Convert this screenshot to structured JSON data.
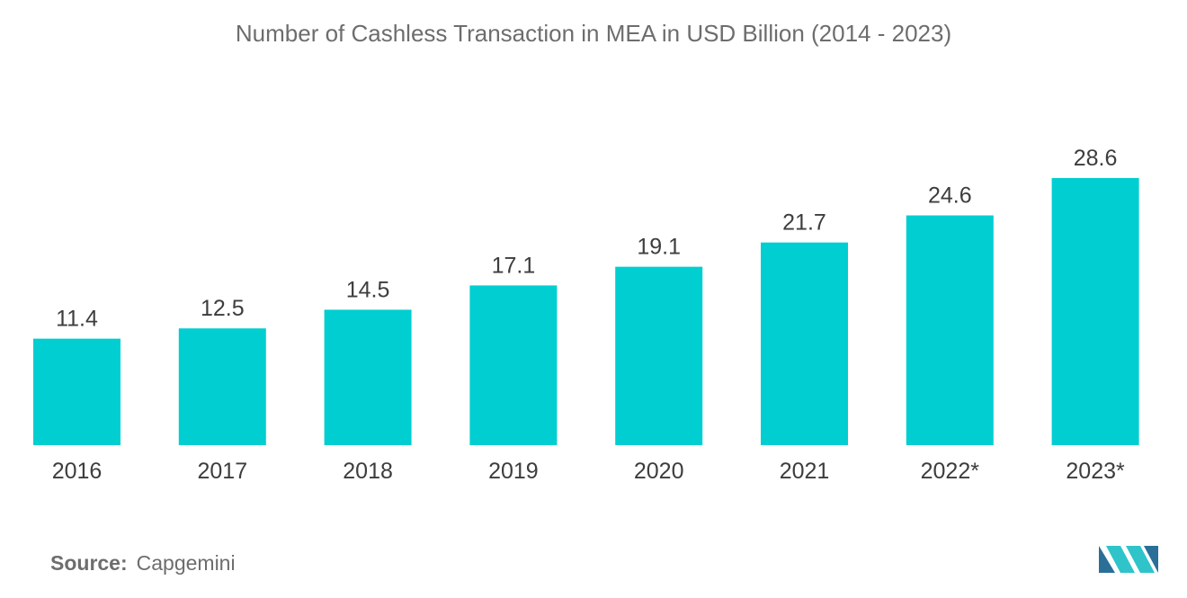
{
  "colors": {
    "bar": "#00ced1",
    "title": "#6d6d6d",
    "labels": "#3d3d3d",
    "logo_dark": "#2a6f97",
    "logo_light": "#2ec4c9"
  },
  "source": {
    "label": "Source:",
    "value": "Capgemini"
  },
  "logo": {
    "icon": "mordor-intelligence-logo-icon"
  },
  "chart_data": {
    "type": "bar",
    "title": "Number of Cashless Transaction in MEA in USD Billion (2014 - 2023)",
    "xlabel": "",
    "ylabel": "",
    "categories": [
      "2016",
      "2017",
      "2018",
      "2019",
      "2020",
      "2021",
      "2022*",
      "2023*"
    ],
    "values": [
      11.4,
      12.5,
      14.5,
      17.1,
      19.1,
      21.7,
      24.6,
      28.6
    ],
    "data_labels": [
      "11.4",
      "12.5",
      "14.5",
      "17.1",
      "19.1",
      "21.7",
      "24.6",
      "28.6"
    ],
    "ylim": [
      0,
      28.6
    ],
    "grid": false,
    "legend": "none"
  }
}
